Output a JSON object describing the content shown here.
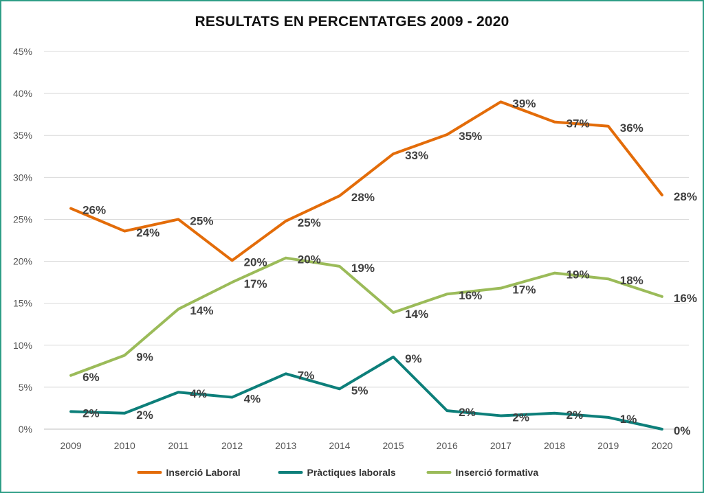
{
  "chart_data": {
    "type": "line",
    "title": "RESULTATS EN PERCENTATGES 2009 - 2020",
    "categories": [
      "2009",
      "2010",
      "2011",
      "2012",
      "2013",
      "2014",
      "2015",
      "2016",
      "2017",
      "2018",
      "2019",
      "2020"
    ],
    "ylim": [
      0,
      45
    ],
    "yticks": [
      0,
      5,
      10,
      15,
      20,
      25,
      30,
      35,
      40,
      45
    ],
    "ytick_labels": [
      "0%",
      "5%",
      "10%",
      "15%",
      "20%",
      "25%",
      "30%",
      "35%",
      "40%",
      "45%"
    ],
    "grid": true,
    "legend_position": "bottom",
    "series": [
      {
        "name": "Inserció Laboral",
        "color": "#e36c09",
        "values": [
          26.3,
          23.6,
          25.0,
          20.1,
          24.8,
          27.8,
          32.8,
          35.1,
          39.0,
          36.6,
          36.1,
          27.9
        ],
        "labels": [
          "26%",
          "24%",
          "25%",
          "20%",
          "25%",
          "28%",
          "33%",
          "35%",
          "39%",
          "37%",
          "36%",
          "28%"
        ]
      },
      {
        "name": "Pràctiques laborals",
        "color": "#0d7f7a",
        "values": [
          2.1,
          1.9,
          4.4,
          3.8,
          6.6,
          4.8,
          8.6,
          2.2,
          1.6,
          1.9,
          1.4,
          0.0
        ],
        "labels": [
          "2%",
          "2%",
          "4%",
          "4%",
          "7%",
          "5%",
          "9%",
          "2%",
          "2%",
          "2%",
          "1%",
          "0%"
        ]
      },
      {
        "name": "Inserció formativa",
        "color": "#9bbb59",
        "values": [
          6.4,
          8.8,
          14.3,
          17.5,
          20.4,
          19.4,
          13.9,
          16.1,
          16.8,
          18.6,
          17.9,
          15.8
        ],
        "labels": [
          "6%",
          "9%",
          "14%",
          "17%",
          "20%",
          "19%",
          "14%",
          "16%",
          "17%",
          "19%",
          "18%",
          "16%"
        ]
      }
    ]
  }
}
